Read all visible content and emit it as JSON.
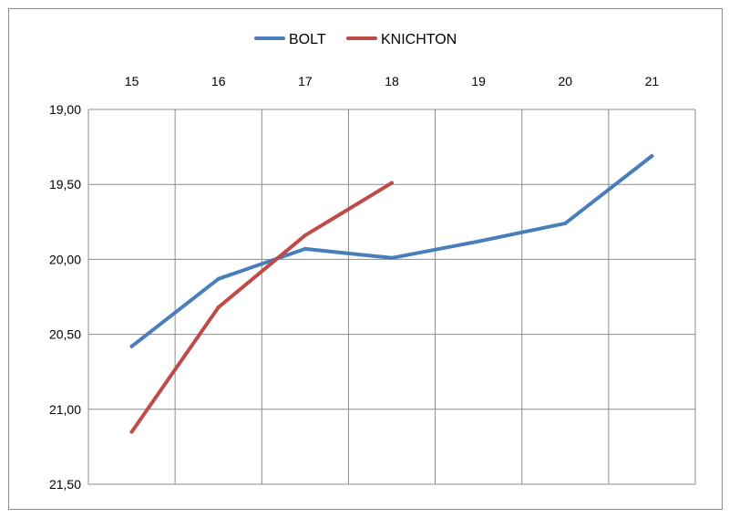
{
  "chart_data": {
    "type": "line",
    "title": "",
    "xlabel": "",
    "ylabel": "",
    "x": [
      15,
      16,
      17,
      18,
      19,
      20,
      21
    ],
    "x_tick_labels": [
      "15",
      "16",
      "17",
      "18",
      "19",
      "20",
      "21"
    ],
    "y_tick_labels": [
      "19,00",
      "19,50",
      "20,00",
      "20,50",
      "21,00",
      "21,50"
    ],
    "y_ticks": [
      19.0,
      19.5,
      20.0,
      20.5,
      21.0,
      21.5
    ],
    "ylim": [
      19.0,
      21.5
    ],
    "y_inverted": true,
    "x_axis_position": "top",
    "grid": true,
    "legend_position": "top",
    "series": [
      {
        "name": "BOLT",
        "color": "#4a7ebb",
        "x": [
          15,
          16,
          17,
          18,
          19,
          20,
          21
        ],
        "values": [
          20.58,
          20.13,
          19.93,
          19.99,
          19.88,
          19.76,
          19.31
        ]
      },
      {
        "name": "KNICHTON",
        "color": "#be4b48",
        "x": [
          15,
          16,
          17,
          18
        ],
        "values": [
          21.15,
          20.32,
          19.84,
          19.49
        ]
      }
    ]
  }
}
